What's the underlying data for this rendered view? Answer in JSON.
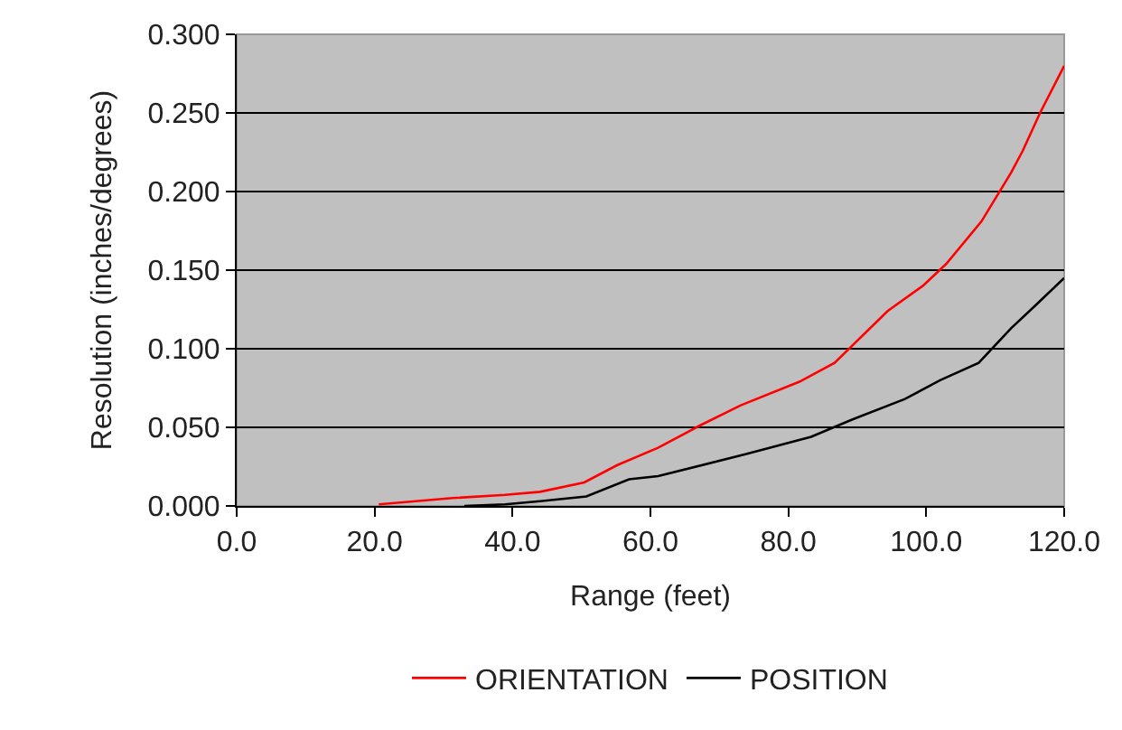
{
  "chart_data": {
    "type": "line",
    "xlabel": "Range (feet)",
    "ylabel": "Resolution (inches/degrees)",
    "xlim": [
      0,
      120
    ],
    "xticks": [
      {
        "value": 0,
        "label": "0.0"
      },
      {
        "value": 20,
        "label": "20.0"
      },
      {
        "value": 40,
        "label": "40.0"
      },
      {
        "value": 60,
        "label": "60.0"
      },
      {
        "value": 80,
        "label": "80.0"
      },
      {
        "value": 100,
        "label": "100.0"
      },
      {
        "value": 120,
        "label": "120.0"
      }
    ],
    "ylim": [
      0,
      0.3
    ],
    "yticks": [
      {
        "value": 0,
        "label": "0.000"
      },
      {
        "value": 0.05,
        "label": "0.050"
      },
      {
        "value": 0.1,
        "label": "0.100"
      },
      {
        "value": 0.15,
        "label": "0.150"
      },
      {
        "value": 0.2,
        "label": "0.200"
      },
      {
        "value": 0.25,
        "label": "0.250"
      },
      {
        "value": 0.3,
        "label": "0.300"
      }
    ],
    "grid": "y",
    "legend": "bottom",
    "series": [
      {
        "name": "ORIENTATION",
        "color": "#ff0000",
        "x": [
          20.6,
          31.3,
          38.9,
          44,
          50.4,
          55.2,
          61.1,
          67.1,
          73.1,
          81.6,
          86.7,
          94.4,
          99.5,
          102.9,
          108,
          112.3,
          114,
          116.5,
          120
        ],
        "values": [
          0.001,
          0.005,
          0.007,
          0.009,
          0.015,
          0.026,
          0.037,
          0.051,
          0.064,
          0.079,
          0.091,
          0.124,
          0.14,
          0.154,
          0.181,
          0.212,
          0.226,
          0.25,
          0.28
        ]
      },
      {
        "name": "POSITION",
        "color": "#000000",
        "x": [
          33,
          38.9,
          44,
          50.7,
          56.9,
          61.1,
          73.9,
          83.3,
          89.3,
          96.9,
          102,
          107.6,
          112.3,
          115.7,
          120
        ],
        "values": [
          0,
          0.001,
          0.003,
          0.006,
          0.017,
          0.019,
          0.033,
          0.044,
          0.055,
          0.068,
          0.08,
          0.091,
          0.113,
          0.127,
          0.145
        ]
      }
    ]
  }
}
